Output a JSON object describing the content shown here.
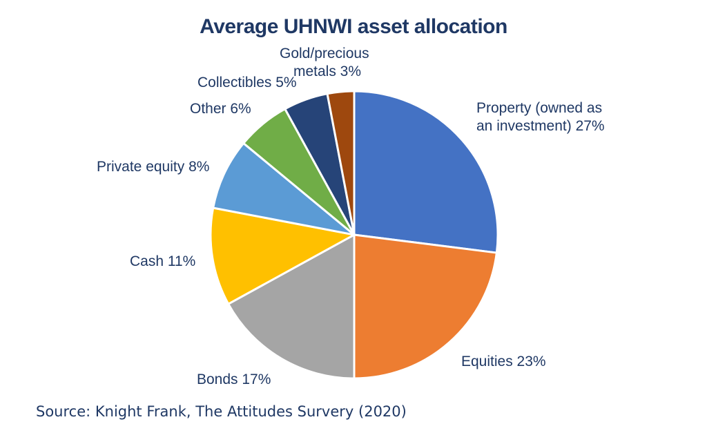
{
  "chart_data": {
    "type": "pie",
    "title": "Average UHNWI asset allocation",
    "slices": [
      {
        "label_lines": [
          "Property (owned as",
          "an investment) 27%"
        ],
        "value": 27,
        "color": "#4472c4"
      },
      {
        "label_lines": [
          "Equities 23%"
        ],
        "value": 23,
        "color": "#ed7d31"
      },
      {
        "label_lines": [
          "Bonds 17%"
        ],
        "value": 17,
        "color": "#a5a5a5"
      },
      {
        "label_lines": [
          "Cash 11%"
        ],
        "value": 11,
        "color": "#ffc000"
      },
      {
        "label_lines": [
          "Private equity 8%"
        ],
        "value": 8,
        "color": "#5b9bd5"
      },
      {
        "label_lines": [
          "Other 6%"
        ],
        "value": 6,
        "color": "#70ad47"
      },
      {
        "label_lines": [
          "Collectibles 5%"
        ],
        "value": 5,
        "color": "#264478"
      },
      {
        "label_lines": [
          "Gold/precious",
          "metals 3%"
        ],
        "value": 3,
        "color": "#9e480e"
      }
    ]
  },
  "source": "Source: Knight Frank, The Attitudes Survery (2020)"
}
